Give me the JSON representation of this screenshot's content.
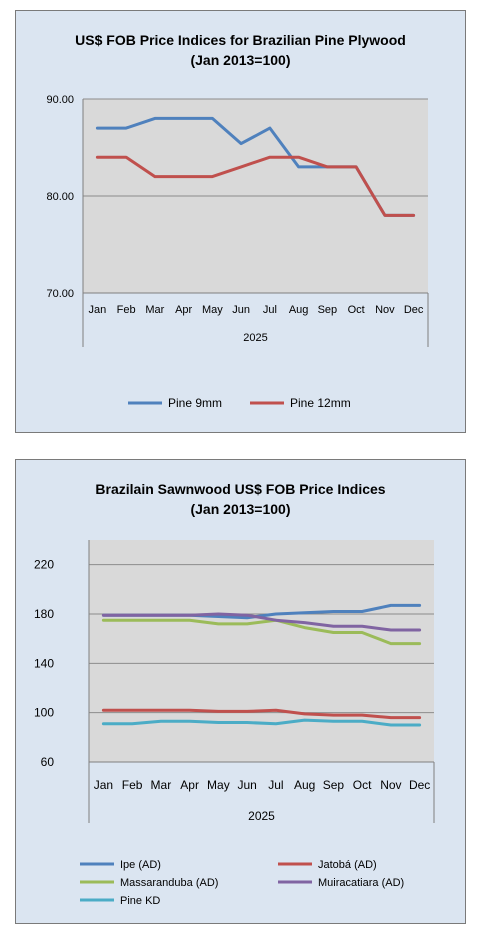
{
  "chart_data": [
    {
      "type": "line",
      "title": "US$ FOB Price Indices for Brazilian  Pine Plywood",
      "subtitle": "(Jan 2013=100)",
      "xlabel": "2025",
      "ylabel": "",
      "categories": [
        "Jan",
        "Feb",
        "Mar",
        "Apr",
        "May",
        "Jun",
        "Jul",
        "Aug",
        "Sep",
        "Oct",
        "Nov",
        "Dec"
      ],
      "ylim": [
        70,
        90
      ],
      "yticks": [
        "70.00",
        "80.00",
        "90.00"
      ],
      "grid": true,
      "legend": "bottom",
      "series": [
        {
          "name": "Pine 9mm",
          "color": "#4f81bd",
          "values": [
            87,
            87,
            88,
            88,
            88,
            85.4,
            87,
            83,
            83,
            83,
            78,
            78
          ]
        },
        {
          "name": "Pine 12mm",
          "color": "#c0504d",
          "values": [
            84,
            84,
            82,
            82,
            82,
            83,
            84,
            84,
            83,
            83,
            78,
            78
          ]
        }
      ]
    },
    {
      "type": "line",
      "title": "Brazilain Sawnwood US$ FOB Price Indices",
      "subtitle": "(Jan 2013=100)",
      "xlabel": "2025",
      "ylabel": "",
      "categories": [
        "Jan",
        "Feb",
        "Mar",
        "Apr",
        "May",
        "Jun",
        "Jul",
        "Aug",
        "Sep",
        "Oct",
        "Nov",
        "Dec"
      ],
      "ylim": [
        60,
        240
      ],
      "yticks": [
        "60",
        "100",
        "140",
        "180",
        "220"
      ],
      "grid": true,
      "legend": "bottom",
      "series": [
        {
          "name": "Ipe (AD)",
          "color": "#4f81bd",
          "values": [
            179,
            179,
            179,
            179,
            178,
            177,
            180,
            181,
            182,
            182,
            187,
            187
          ]
        },
        {
          "name": "Jatobá (AD)",
          "color": "#c0504d",
          "values": [
            102,
            102,
            102,
            102,
            101,
            101,
            102,
            99,
            98,
            98,
            96,
            96
          ]
        },
        {
          "name": "Massaranduba (AD)",
          "color": "#9bbb59",
          "values": [
            175,
            175,
            175,
            175,
            172,
            172,
            175,
            169,
            165,
            165,
            156,
            156
          ]
        },
        {
          "name": "Muiracatiara (AD)",
          "color": "#8064a2",
          "values": [
            179,
            179,
            179,
            179,
            180,
            179,
            175,
            173,
            170,
            170,
            167,
            167
          ]
        },
        {
          "name": "Pine KD",
          "color": "#4bacc6",
          "values": [
            91,
            91,
            93,
            93,
            92,
            92,
            91,
            94,
            93,
            93,
            90,
            90
          ]
        }
      ]
    }
  ]
}
